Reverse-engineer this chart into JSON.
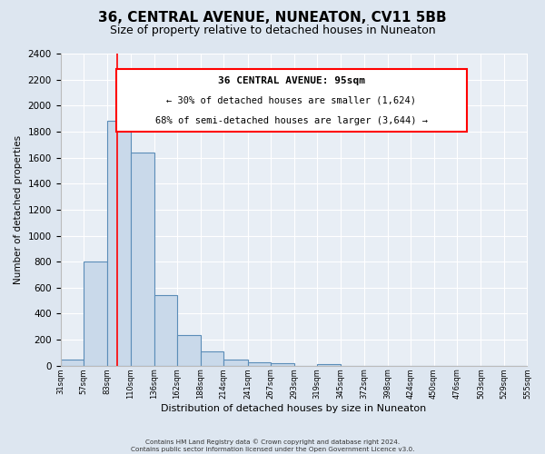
{
  "title": "36, CENTRAL AVENUE, NUNEATON, CV11 5BB",
  "subtitle": "Size of property relative to detached houses in Nuneaton",
  "xlabel": "Distribution of detached houses by size in Nuneaton",
  "ylabel": "Number of detached properties",
  "bar_left_edges": [
    31,
    57,
    83,
    110,
    136,
    162,
    188,
    214,
    241,
    267,
    293,
    319,
    345,
    372,
    398,
    424,
    450,
    476,
    503,
    529
  ],
  "bar_widths": [
    26,
    26,
    27,
    26,
    26,
    26,
    26,
    27,
    26,
    26,
    26,
    26,
    27,
    26,
    26,
    26,
    26,
    27,
    26,
    26
  ],
  "bar_heights": [
    50,
    800,
    1880,
    1640,
    540,
    235,
    110,
    50,
    28,
    18,
    0,
    15,
    0,
    0,
    0,
    0,
    0,
    0,
    0,
    0
  ],
  "bar_color": "#c9d9ea",
  "bar_edge_color": "#5b8db8",
  "x_tick_labels": [
    "31sqm",
    "57sqm",
    "83sqm",
    "110sqm",
    "136sqm",
    "162sqm",
    "188sqm",
    "214sqm",
    "241sqm",
    "267sqm",
    "293sqm",
    "319sqm",
    "345sqm",
    "372sqm",
    "398sqm",
    "424sqm",
    "450sqm",
    "476sqm",
    "503sqm",
    "529sqm",
    "555sqm"
  ],
  "ylim": [
    0,
    2400
  ],
  "yticks": [
    0,
    200,
    400,
    600,
    800,
    1000,
    1200,
    1400,
    1600,
    1800,
    2000,
    2200,
    2400
  ],
  "red_line_x": 95,
  "annotation_line1": "36 CENTRAL AVENUE: 95sqm",
  "annotation_line2": "← 30% of detached houses are smaller (1,624)",
  "annotation_line3": "68% of semi-detached houses are larger (3,644) →",
  "footer_line1": "Contains HM Land Registry data © Crown copyright and database right 2024.",
  "footer_line2": "Contains public sector information licensed under the Open Government Licence v3.0.",
  "bg_color": "#dde6f0",
  "plot_bg_color": "#e8eef5",
  "grid_color": "#ffffff",
  "title_fontsize": 11,
  "subtitle_fontsize": 9
}
